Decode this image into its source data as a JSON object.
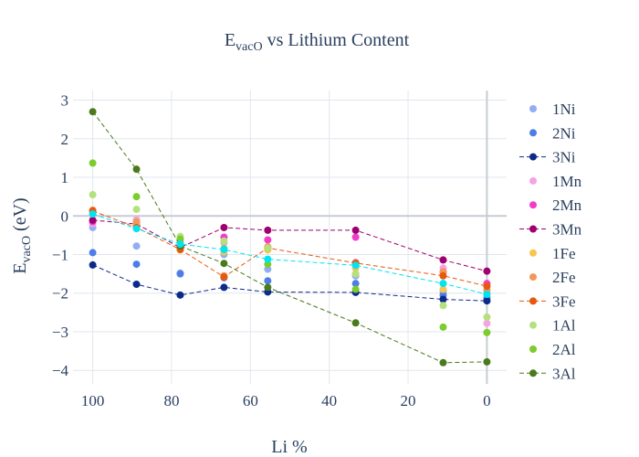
{
  "chart_data": {
    "type": "scatter",
    "title": "E",
    "title_sub": "vacO",
    "title_rest": " vs Lithium Content",
    "xlabel": "Li %",
    "ylabel": "E",
    "ylabel_sub": "vacO",
    "ylabel_rest": " (eV)",
    "xlim": [
      105,
      -5
    ],
    "ylim": [
      -4.35,
      3.25
    ],
    "xticks": [
      100,
      80,
      60,
      40,
      20,
      0
    ],
    "yticks": [
      3,
      2,
      1,
      0,
      -1,
      -2,
      -3,
      -4
    ],
    "xtick_labels": [
      "100",
      "80",
      "60",
      "40",
      "20",
      "0"
    ],
    "ytick_labels": [
      "3",
      "2",
      "1",
      "0",
      "−1",
      "−2",
      "−3",
      "−4"
    ],
    "grid": true,
    "legend_position": "right",
    "series": [
      {
        "name": "1Ni",
        "mode": "markers",
        "color": "#92acf5",
        "x": [
          100,
          88.9,
          77.8,
          66.7,
          55.6,
          33.3,
          11.1,
          0
        ],
        "y": [
          -0.3,
          -0.78,
          -1.48,
          -1.0,
          -1.38,
          -1.55,
          -1.95,
          -2.1
        ]
      },
      {
        "name": "2Ni",
        "mode": "markers",
        "color": "#4f7de8",
        "x": [
          100,
          88.9,
          77.8,
          66.7,
          55.6,
          33.3,
          11.1,
          0
        ],
        "y": [
          -0.95,
          -1.25,
          -1.5,
          -1.6,
          -1.68,
          -1.75,
          -2.05,
          -2.15
        ]
      },
      {
        "name": "3Ni",
        "mode": "lines+markers",
        "color": "#0d2a8a",
        "x": [
          100,
          88.9,
          77.8,
          66.7,
          55.6,
          33.3,
          11.1,
          0
        ],
        "y": [
          -1.27,
          -1.77,
          -2.05,
          -1.85,
          -1.97,
          -1.98,
          -2.16,
          -2.2
        ]
      },
      {
        "name": "1Mn",
        "mode": "markers",
        "color": "#f5a3e3",
        "x": [
          100,
          88.9,
          77.8,
          66.7,
          55.6,
          33.3,
          11.1,
          0
        ],
        "y": [
          -0.2,
          -0.1,
          -0.65,
          -0.7,
          -0.85,
          -1.2,
          -1.35,
          -2.78
        ]
      },
      {
        "name": "2Mn",
        "mode": "markers",
        "color": "#f03ec8",
        "x": [
          100,
          88.9,
          77.8,
          66.7,
          55.6,
          33.3,
          11.1,
          0
        ],
        "y": [
          -0.15,
          -0.25,
          -0.72,
          -0.55,
          -0.62,
          -0.55,
          -1.45,
          -1.75
        ]
      },
      {
        "name": "3Mn",
        "mode": "lines+markers",
        "color": "#9e006e",
        "x": [
          100,
          88.9,
          77.8,
          66.7,
          55.6,
          33.3,
          11.1,
          0
        ],
        "y": [
          -0.11,
          -0.21,
          -0.82,
          -0.3,
          -0.37,
          -0.37,
          -1.14,
          -1.43
        ]
      },
      {
        "name": "1Fe",
        "mode": "markers",
        "color": "#f9c54b",
        "x": [
          100,
          88.9,
          77.8,
          66.7,
          55.6,
          33.3,
          11.1,
          0
        ],
        "y": [
          0.1,
          -0.2,
          -0.88,
          -0.93,
          -0.88,
          -1.35,
          -1.9,
          -2.0
        ]
      },
      {
        "name": "2Fe",
        "mode": "markers",
        "color": "#f5965a",
        "x": [
          100,
          88.9,
          77.8,
          66.7,
          55.6,
          33.3,
          11.1,
          0
        ],
        "y": [
          0.15,
          -0.15,
          -0.8,
          -1.55,
          -0.8,
          -1.5,
          -1.45,
          -1.92
        ]
      },
      {
        "name": "3Fe",
        "mode": "lines+markers",
        "color": "#e8580c",
        "x": [
          100,
          88.9,
          77.8,
          66.7,
          55.6,
          33.3,
          11.1,
          0
        ],
        "y": [
          0.13,
          -0.3,
          -0.87,
          -1.58,
          -0.83,
          -1.22,
          -1.55,
          -1.82
        ]
      },
      {
        "name": "1Al",
        "mode": "markers",
        "color": "#b5e07e",
        "x": [
          100,
          88.9,
          77.8,
          66.7,
          55.6,
          33.3,
          11.1,
          0
        ],
        "y": [
          0.55,
          0.17,
          -0.53,
          -0.65,
          -0.83,
          -1.5,
          -2.32,
          -2.62
        ]
      },
      {
        "name": "2Al",
        "mode": "markers",
        "color": "#7ccc2c",
        "x": [
          100,
          88.9,
          77.8,
          66.7,
          55.6,
          33.3,
          11.1,
          0
        ],
        "y": [
          1.37,
          0.5,
          -0.6,
          -0.85,
          -1.25,
          -1.9,
          -2.88,
          -3.02
        ]
      },
      {
        "name": "3Al",
        "mode": "lines+markers",
        "color": "#4a7a1c",
        "x": [
          100,
          88.9,
          77.8,
          66.7,
          55.6,
          33.3,
          11.1,
          0
        ],
        "y": [
          2.7,
          1.21,
          -0.78,
          -1.23,
          -1.85,
          -2.77,
          -3.8,
          -3.78
        ]
      },
      {
        "name": "",
        "mode": "lines+markers",
        "color": "#00e5f0",
        "in_legend": false,
        "x": [
          100,
          88.9,
          77.8,
          66.7,
          55.6,
          33.3,
          11.1,
          0
        ],
        "y": [
          0.05,
          -0.33,
          -0.73,
          -0.87,
          -1.12,
          -1.28,
          -1.75,
          -2.03
        ]
      }
    ]
  }
}
